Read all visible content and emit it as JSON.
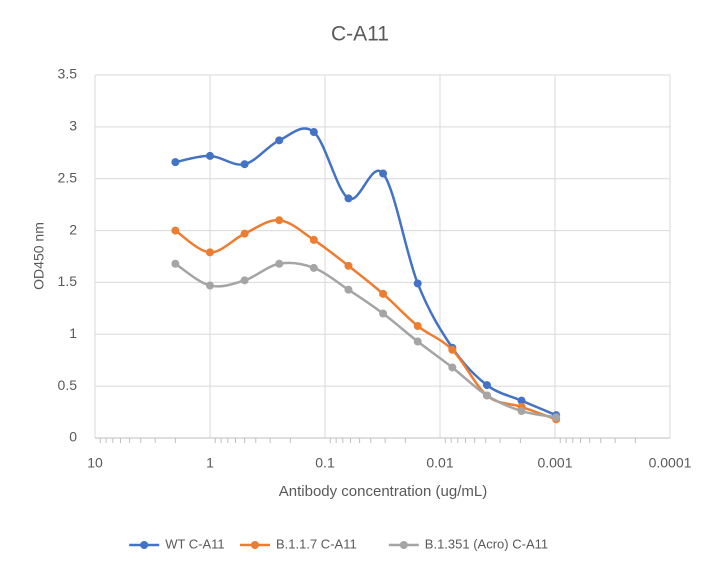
{
  "chart_data": {
    "type": "line",
    "title": "C-A11",
    "x_label": "Antibody concentration (ug/mL)",
    "y_label": "OD450 nm",
    "x": [
      2,
      1,
      0.5,
      0.25,
      0.125,
      0.0625,
      0.03125,
      0.015625,
      0.0078125,
      0.00390625,
      0.001953125,
      0.0009765625
    ],
    "series": [
      {
        "name": "WT C-A11",
        "color": "#4472c4",
        "values": [
          2.66,
          2.72,
          2.64,
          2.87,
          2.95,
          2.31,
          2.55,
          1.49,
          0.87,
          0.51,
          0.36,
          0.22
        ]
      },
      {
        "name": "B.1.1.7 C-A11",
        "color": "#ed7d31",
        "values": [
          2.0,
          1.79,
          1.97,
          2.1,
          1.91,
          1.66,
          1.39,
          1.08,
          0.85,
          0.41,
          0.3,
          0.18
        ]
      },
      {
        "name": "B.1.351 (Acro) C-A11",
        "color": "#a5a5a5",
        "values": [
          1.68,
          1.47,
          1.52,
          1.68,
          1.64,
          1.43,
          1.2,
          0.93,
          0.68,
          0.41,
          0.26,
          0.2
        ]
      }
    ],
    "xlim": [
      10,
      0.0001
    ],
    "xticks": [
      10,
      1,
      0.1,
      0.01,
      0.001,
      0.0001
    ],
    "x_log": true,
    "ylim": [
      0,
      3.5
    ],
    "yticks": [
      0,
      0.5,
      1,
      1.5,
      2,
      2.5,
      3,
      3.5
    ],
    "grid": true,
    "smooth": true,
    "legend": "bottom"
  }
}
